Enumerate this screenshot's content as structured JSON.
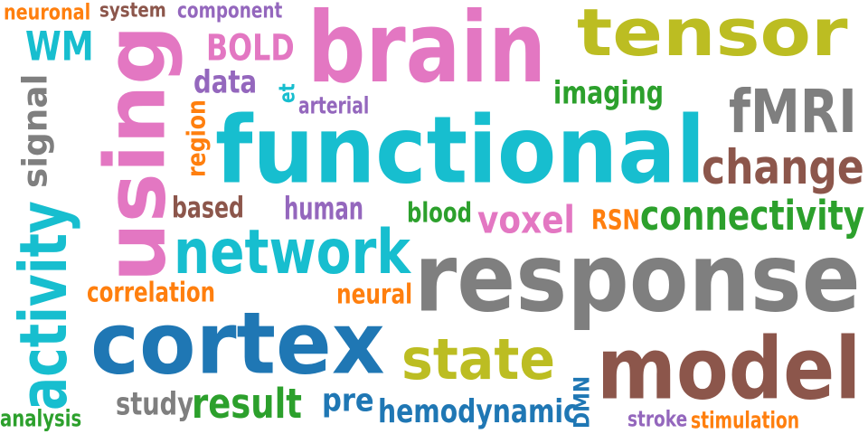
{
  "palette": {
    "teal": "#17becf",
    "pink": "#e377c2",
    "olive": "#bcbd22",
    "gray": "#7f7f7f",
    "brown": "#8c564b",
    "blue": "#1f77b4",
    "green": "#2ca02c",
    "orange": "#ff7f0e",
    "purple": "#9467bd",
    "background": "#ffffff"
  },
  "words": [
    {
      "text": "neuronal",
      "color": "orange"
    },
    {
      "text": "system",
      "color": "brown"
    },
    {
      "text": "component",
      "color": "purple"
    },
    {
      "text": "brain",
      "color": "pink"
    },
    {
      "text": "tensor",
      "color": "olive"
    },
    {
      "text": "WM",
      "color": "teal"
    },
    {
      "text": "using",
      "color": "pink"
    },
    {
      "text": "BOLD",
      "color": "pink"
    },
    {
      "text": "data",
      "color": "purple"
    },
    {
      "text": "et",
      "color": "teal"
    },
    {
      "text": "arterial",
      "color": "purple"
    },
    {
      "text": "imaging",
      "color": "green"
    },
    {
      "text": "fMRI",
      "color": "gray"
    },
    {
      "text": "signal",
      "color": "gray"
    },
    {
      "text": "region",
      "color": "orange"
    },
    {
      "text": "functional",
      "color": "teal"
    },
    {
      "text": "change",
      "color": "brown"
    },
    {
      "text": "activity",
      "color": "teal"
    },
    {
      "text": "based",
      "color": "brown"
    },
    {
      "text": "human",
      "color": "purple"
    },
    {
      "text": "blood",
      "color": "green"
    },
    {
      "text": "voxel",
      "color": "pink"
    },
    {
      "text": "RSN",
      "color": "orange"
    },
    {
      "text": "connectivity",
      "color": "green"
    },
    {
      "text": "network",
      "color": "teal"
    },
    {
      "text": "response",
      "color": "gray"
    },
    {
      "text": "correlation",
      "color": "orange"
    },
    {
      "text": "neural",
      "color": "orange"
    },
    {
      "text": "cortex",
      "color": "blue"
    },
    {
      "text": "state",
      "color": "olive"
    },
    {
      "text": "model",
      "color": "brown"
    },
    {
      "text": "study",
      "color": "gray"
    },
    {
      "text": "result",
      "color": "green"
    },
    {
      "text": "pre",
      "color": "blue"
    },
    {
      "text": "hemodynamic",
      "color": "blue"
    },
    {
      "text": "DMN",
      "color": "blue"
    },
    {
      "text": "analysis",
      "color": "green"
    },
    {
      "text": "stroke",
      "color": "purple"
    },
    {
      "text": "stimulation",
      "color": "orange"
    }
  ]
}
